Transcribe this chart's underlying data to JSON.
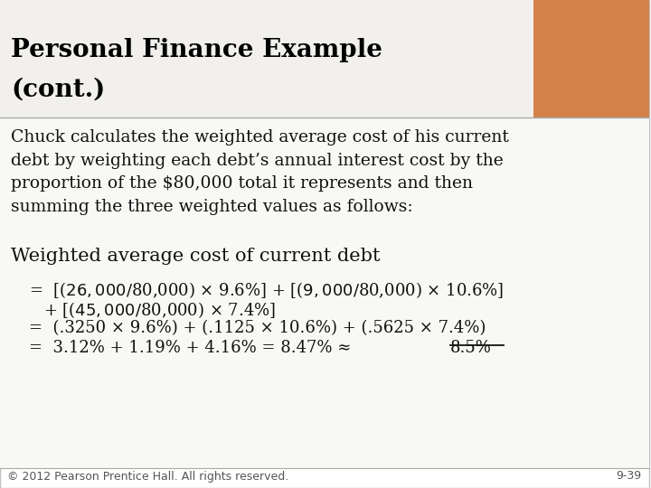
{
  "title_line1": "Personal Finance Example",
  "title_line2": "(cont.)",
  "title_bg_color": "#D4824A",
  "title_text_color": "#000000",
  "body_bg_color": "#FFFFFF",
  "slide_border_color": "#C0C0C0",
  "title_white_color": "#F2F0EC",
  "body_text": "Chuck calculates the weighted average cost of his current\ndebt by weighting each debt’s annual interest cost by the\nproportion of the $80,000 total it represents and then\nsumming the three weighted values as follows:",
  "section_header": "Weighted average cost of current debt",
  "eq_line1": "=  [($26,000/$80,000) × 9.6%] + [($9,000/$80,000) × 10.6%]",
  "eq_line2": "     + [($45,000/$80,000) × 7.4%]",
  "eq_line3": "=  (.3250 × 9.6%) + (.1125 × 10.6%) + (.5625 × 7.4%)",
  "eq_line4_pre": "=  3.12% + 1.19% + 4.16% = 8.47% ≈ ",
  "eq_line4_underline": "8.5%",
  "footer_left": "© 2012 Pearson Prentice Hall. All rights reserved.",
  "footer_right": "9-39",
  "footer_text_color": "#555555",
  "body_font_size": 13.5,
  "title_font_size": 20,
  "section_font_size": 15,
  "eq_font_size": 13,
  "footer_font_size": 9
}
